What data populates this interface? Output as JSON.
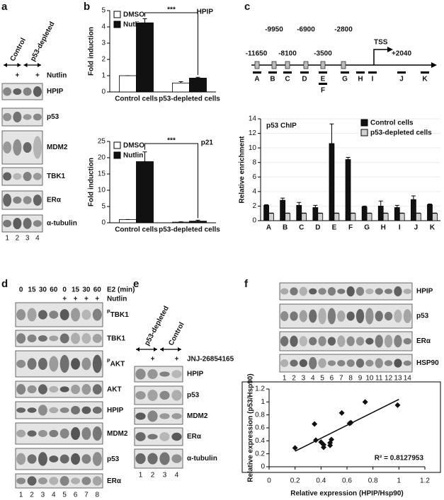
{
  "panel_labels": [
    "a",
    "b",
    "c",
    "d",
    "e",
    "f"
  ],
  "blot_a": {
    "groups": [
      "Control",
      "p53-depleted"
    ],
    "treatment": "Nutlin",
    "signs": [
      "+",
      "+"
    ],
    "rows": [
      "HPIP",
      "p53",
      "MDM2",
      "TBK1",
      "ERα",
      "α-tubulin"
    ],
    "lanes": [
      "1",
      "2",
      "3",
      "4"
    ]
  },
  "blot_d": {
    "time_label": "E2 (min)",
    "times": [
      "0",
      "15",
      "30",
      "60",
      "0",
      "15",
      "30",
      "60"
    ],
    "treatment": "Nutlin",
    "signs": [
      "+",
      "+",
      "+",
      "+"
    ],
    "rows": [
      {
        "sup": "P",
        "name": "TBK1"
      },
      {
        "name": "TBK1"
      },
      {
        "sup": "P",
        "name": "AKT"
      },
      {
        "name": "AKT"
      },
      {
        "name": "HPIP"
      },
      {
        "name": "MDM2"
      },
      {
        "name": "p53"
      },
      {
        "name": "ERα"
      }
    ],
    "lanes": [
      "1",
      "2",
      "3",
      "4",
      "5",
      "6",
      "7",
      "8"
    ]
  },
  "blot_e": {
    "groups": [
      "p53-depleted",
      "Control"
    ],
    "treatment": "JNJ-26854165",
    "signs": [
      "+",
      "+"
    ],
    "rows": [
      "HPIP",
      "p53",
      "MDM2",
      "ERα",
      "α-tubulin"
    ],
    "lanes": [
      "1",
      "2",
      "3",
      "4"
    ]
  },
  "blot_f": {
    "rows": [
      "HPIP",
      "p53",
      "ERα",
      "HSP90"
    ],
    "lanes": [
      "1",
      "2",
      "3",
      "4",
      "5",
      "6",
      "7",
      "8",
      "9",
      "10",
      "11",
      "12",
      "13",
      "14"
    ]
  },
  "gene_map": {
    "positions": [
      "-11650",
      "-9950",
      "-8100",
      "-6900",
      "-3500",
      "-2800",
      "+2040"
    ],
    "tss": "TSS",
    "regions": [
      "A",
      "B",
      "C",
      "D",
      "E",
      "F",
      "G",
      "H",
      "I",
      "J",
      "K"
    ]
  },
  "chart_data": [
    {
      "type": "bar",
      "ylabel": "Fold induction",
      "categories": [
        "Control cells",
        "p53-depleted cells"
      ],
      "legend": "upper left",
      "annotations": [
        "***",
        "HPIP"
      ],
      "series": [
        {
          "name": "DMSO",
          "color": "#ffffff",
          "values": [
            1,
            0.55
          ],
          "errors": [
            0,
            0.08
          ]
        },
        {
          "name": "Nutlin",
          "color": "#111111",
          "values": [
            4.25,
            0.85
          ],
          "errors": [
            0.25,
            0.05
          ]
        }
      ],
      "ylim": [
        0,
        5
      ],
      "yticks": [
        0,
        1,
        2,
        3,
        4,
        5
      ]
    },
    {
      "type": "bar",
      "ylabel": "Fold induction",
      "categories": [
        "Control cells",
        "p53-depleted cells"
      ],
      "legend": "upper left",
      "annotations": [
        "***",
        "p21"
      ],
      "series": [
        {
          "name": "DMSO",
          "color": "#ffffff",
          "values": [
            1,
            0.2
          ],
          "errors": [
            0,
            0.1
          ]
        },
        {
          "name": "Nutlin",
          "color": "#111111",
          "values": [
            18.8,
            0.5
          ],
          "errors": [
            3,
            0.3
          ]
        }
      ],
      "ylim": [
        0,
        25
      ],
      "yticks": [
        0,
        5,
        10,
        15,
        20,
        25
      ]
    },
    {
      "type": "bar",
      "ylabel": "Relative enrichment",
      "categories": [
        "A",
        "B",
        "C",
        "D",
        "E",
        "F",
        "G",
        "H",
        "I",
        "J",
        "K"
      ],
      "legend": "upper right",
      "annotations": [
        "p53 ChIP"
      ],
      "series": [
        {
          "name": "Control cells",
          "color": "#111111",
          "values": [
            2.1,
            2.8,
            2.1,
            1.8,
            10.6,
            8.4,
            1.9,
            2.0,
            1.8,
            2.9,
            2.2
          ],
          "errors": [
            0.1,
            0.3,
            0.4,
            0.3,
            2.7,
            0.3,
            0.1,
            0.7,
            0.3,
            0.5,
            0.1
          ]
        },
        {
          "name": "p53-depleted cells",
          "color": "#d0d0d0",
          "values": [
            1,
            1,
            1,
            1,
            1,
            1,
            1,
            1,
            1,
            1,
            1
          ],
          "errors": [
            0.05,
            0.05,
            0.05,
            0.05,
            0.05,
            0.05,
            0.05,
            0.05,
            0.05,
            0.05,
            0.05
          ]
        }
      ],
      "ylim": [
        0,
        14
      ],
      "yticks": [
        0,
        2,
        4,
        6,
        8,
        10,
        12,
        14
      ]
    },
    {
      "type": "scatter",
      "xlabel": "Relative expression (HPIP/Hsp90)",
      "ylabel": "Relative expression (p53/Hsp90)",
      "annotations": [
        "R² = 0.8127953"
      ],
      "x": [
        0.2,
        0.35,
        0.36,
        0.4,
        0.42,
        0.42,
        0.47,
        0.47,
        0.48,
        0.56,
        0.62,
        0.63,
        0.74,
        0.99
      ],
      "values": [
        0.29,
        0.66,
        0.41,
        0.38,
        0.3,
        0.34,
        0.33,
        0.37,
        0.42,
        0.83,
        0.67,
        0.68,
        1.0,
        0.95
      ],
      "trendline": {
        "x": [
          0.2,
          1.0
        ],
        "y": [
          0.24,
          1.04
        ]
      },
      "xlim": [
        0,
        1.2
      ],
      "xticks": [
        0,
        0.2,
        0.4,
        0.6,
        0.8,
        1,
        1.2
      ],
      "ylim": [
        0,
        1.2
      ],
      "yticks": [
        0,
        0.2,
        0.4,
        0.6,
        0.8,
        1,
        1.2
      ]
    }
  ]
}
